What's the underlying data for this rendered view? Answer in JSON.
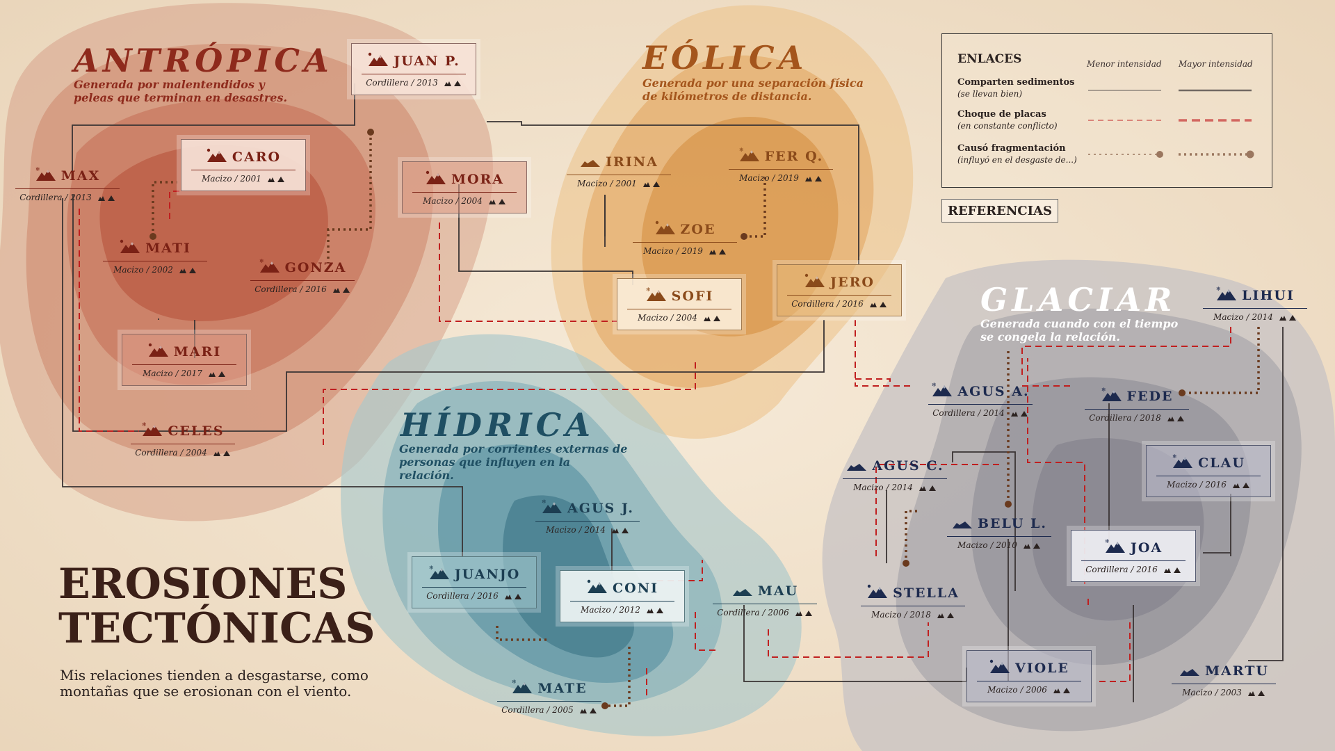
{
  "title": {
    "line1": "EROSIONES",
    "line2": "TECTÓNICAS"
  },
  "subtitle": "Mis relaciones tienden a desgastarse, como montañas que se erosionan con el viento.",
  "regions": [
    {
      "id": "antropica",
      "title": "ANTRÓPICA",
      "desc": "Generada por malentendidos y peleas que terminan en desastres.",
      "color": "#8e2a1c"
    },
    {
      "id": "eolica",
      "title": "EÓLICA",
      "desc": "Generada por una separación física de kilómetros de distancia.",
      "color": "#a4551c"
    },
    {
      "id": "hidrica",
      "title": "HÍDRICA",
      "desc": "Generada por corrientes externas de personas que influyen en la relación.",
      "color": "#1f4f63"
    },
    {
      "id": "glaciar",
      "title": "GLACIAR",
      "desc": "Generada cuando con el tiempo se congela la relación.",
      "color": "#ffffff"
    }
  ],
  "colors": {
    "antropica": "#7a2115",
    "eolica": "#8a4a1a",
    "hidrica": "#1c3e52",
    "glaciar": "#1d2a4e",
    "link_dark": "#3a3434",
    "link_red": "#c01f1f",
    "link_brown": "#6a3a1e"
  },
  "people": [
    {
      "id": "juanp",
      "name": "JUAN P.",
      "meta": "Cordillera / 2013",
      "region": "antropica",
      "boxed": true,
      "icon": "mountain-sun-icon"
    },
    {
      "id": "caro",
      "name": "CARO",
      "meta": "Macizo / 2001",
      "region": "antropica",
      "boxed": true,
      "icon": "mountain-sun-icon"
    },
    {
      "id": "max",
      "name": "MAX",
      "meta": "Cordillera / 2013",
      "region": "antropica",
      "boxed": false,
      "icon": "mountain-snow-icon"
    },
    {
      "id": "mati",
      "name": "MATI",
      "meta": "Macizo / 2002",
      "region": "antropica",
      "boxed": false,
      "icon": "mountain-sun-icon"
    },
    {
      "id": "gonza",
      "name": "GONZA",
      "meta": "Cordillera / 2016",
      "region": "antropica",
      "boxed": false,
      "icon": "mountain-snow-icon"
    },
    {
      "id": "mari",
      "name": "MARI",
      "meta": "Macizo / 2017",
      "region": "antropica",
      "boxed": true,
      "icon": "mountain-sun-icon"
    },
    {
      "id": "celes",
      "name": "CELES",
      "meta": "Cordillera / 2004",
      "region": "antropica",
      "boxed": false,
      "icon": "mountain-snow-icon"
    },
    {
      "id": "mora",
      "name": "MORA",
      "meta": "Macizo / 2004",
      "region": "antropica",
      "boxed": true,
      "icon": "mountain-sun-icon"
    },
    {
      "id": "irina",
      "name": "IRINA",
      "meta": "Macizo / 2001",
      "region": "eolica",
      "boxed": false,
      "icon": "mountain-flat-icon"
    },
    {
      "id": "ferq",
      "name": "FER Q.",
      "meta": "Macizo / 2019",
      "region": "eolica",
      "boxed": false,
      "icon": "mountain-snow-icon"
    },
    {
      "id": "zoe",
      "name": "ZOE",
      "meta": "Macizo / 2019",
      "region": "eolica",
      "boxed": false,
      "icon": "mountain-sun-icon"
    },
    {
      "id": "sofi",
      "name": "SOFI",
      "meta": "Macizo / 2004",
      "region": "eolica",
      "boxed": true,
      "icon": "mountain-snow-icon"
    },
    {
      "id": "jero",
      "name": "JERO",
      "meta": "Cordillera / 2016",
      "region": "eolica",
      "boxed": true,
      "icon": "mountain-sun-icon"
    },
    {
      "id": "agusj",
      "name": "AGUS J.",
      "meta": "Macizo / 2014",
      "region": "hidrica",
      "boxed": false,
      "icon": "mountain-snow-icon"
    },
    {
      "id": "juanjo",
      "name": "JUANJO",
      "meta": "Cordillera / 2016",
      "region": "hidrica",
      "boxed": true,
      "icon": "mountain-snow-icon"
    },
    {
      "id": "coni",
      "name": "CONI",
      "meta": "Macizo / 2012",
      "region": "hidrica",
      "boxed": true,
      "icon": "mountain-sun-icon"
    },
    {
      "id": "mau",
      "name": "MAU",
      "meta": "Cordillera / 2006",
      "region": "hidrica",
      "boxed": false,
      "icon": "mountain-flat-icon"
    },
    {
      "id": "mate",
      "name": "MATE",
      "meta": "Cordillera / 2005",
      "region": "hidrica",
      "boxed": false,
      "icon": "mountain-snow-icon"
    },
    {
      "id": "lihui",
      "name": "LIHUI",
      "meta": "Macizo / 2014",
      "region": "glaciar",
      "boxed": false,
      "icon": "mountain-snow-icon"
    },
    {
      "id": "agusa",
      "name": "AGUS A.",
      "meta": "Cordillera / 2014",
      "region": "glaciar",
      "boxed": false,
      "icon": "mountain-snow-icon"
    },
    {
      "id": "fede",
      "name": "FEDE",
      "meta": "Cordillera / 2018",
      "region": "glaciar",
      "boxed": false,
      "icon": "mountain-snow-icon"
    },
    {
      "id": "agusc",
      "name": "AGUS C.",
      "meta": "Macizo / 2014",
      "region": "glaciar",
      "boxed": false,
      "icon": "mountain-flat-icon"
    },
    {
      "id": "clau",
      "name": "CLAU",
      "meta": "Macizo / 2016",
      "region": "glaciar",
      "boxed": true,
      "icon": "mountain-snow-icon"
    },
    {
      "id": "belul",
      "name": "BELU L.",
      "meta": "Macizo / 2010",
      "region": "glaciar",
      "boxed": false,
      "icon": "mountain-flat-icon"
    },
    {
      "id": "joa",
      "name": "JOA",
      "meta": "Cordillera / 2016",
      "region": "glaciar",
      "boxed": true,
      "icon": "mountain-snow-icon"
    },
    {
      "id": "stella",
      "name": "STELLA",
      "meta": "Macizo / 2018",
      "region": "glaciar",
      "boxed": false,
      "icon": "mountain-sun-icon"
    },
    {
      "id": "viole",
      "name": "VIOLE",
      "meta": "Macizo / 2006",
      "region": "glaciar",
      "boxed": true,
      "icon": "mountain-sun-icon"
    },
    {
      "id": "martu",
      "name": "MARTU",
      "meta": "Macizo / 2003",
      "region": "glaciar",
      "boxed": false,
      "icon": "mountain-flat-icon"
    }
  ],
  "legend": {
    "title": "ENLACES",
    "col_low": "Menor intensidad",
    "col_high": "Mayor intensidad",
    "rows": [
      {
        "label": "Comparten sedimentos",
        "sub": "(se llevan bien)",
        "type": "solid"
      },
      {
        "label": "Choque de placas",
        "sub": "(en constante conflicto)",
        "type": "dashed"
      },
      {
        "label": "Causó fragmentación",
        "sub": "(influyó en el desgaste de...)",
        "type": "dotted"
      }
    ]
  },
  "references_button": "REFERENCIAS"
}
